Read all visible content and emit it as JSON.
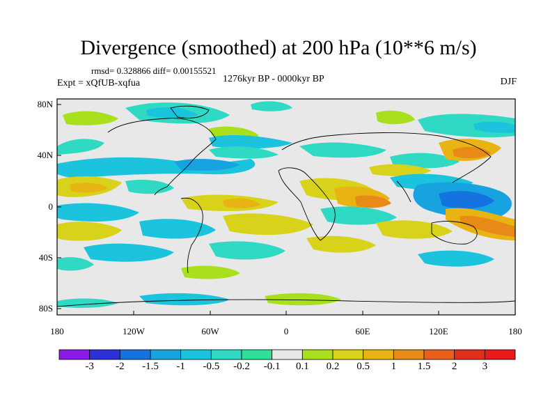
{
  "title": "Divergence (smoothed) at 200 hPa (10**6 m/s)",
  "stats": "rmsd= 0.328866 diff= 0.00155521",
  "period": "1276kyr BP - 0000kyr BP",
  "experiment": "Expt = xQfUB-xqfua",
  "season": "DJF",
  "lat_labels": [
    "80N",
    "40N",
    "0",
    "40S",
    "80S"
  ],
  "lon_labels": [
    "180",
    "120W",
    "60W",
    "0",
    "60E",
    "120E",
    "180"
  ],
  "colorbar": {
    "labels": [
      "-3",
      "-2",
      "-1.5",
      "-1",
      "-0.5",
      "-0.2",
      "-0.1",
      "0.1",
      "0.2",
      "0.5",
      "1",
      "1.5",
      "2",
      "3"
    ],
    "colors": [
      "#8a1ae6",
      "#2b30d8",
      "#1573e0",
      "#16a3e0",
      "#1bc4dc",
      "#2fd9c4",
      "#2fe09a",
      "#e8e8e8",
      "#a8e01e",
      "#d8d21a",
      "#e8b414",
      "#e88a18",
      "#e8601c",
      "#e0301c",
      "#e81a1a"
    ]
  },
  "map": {
    "background": "#e8e8e8",
    "lon_range": [
      -180,
      180
    ],
    "lat_range": [
      -90,
      90
    ],
    "contour_levels": [
      -3,
      -2,
      -1.5,
      -1,
      -0.5,
      -0.2,
      -0.1,
      0.1,
      0.2,
      0.5,
      1,
      1.5,
      2,
      3
    ]
  }
}
